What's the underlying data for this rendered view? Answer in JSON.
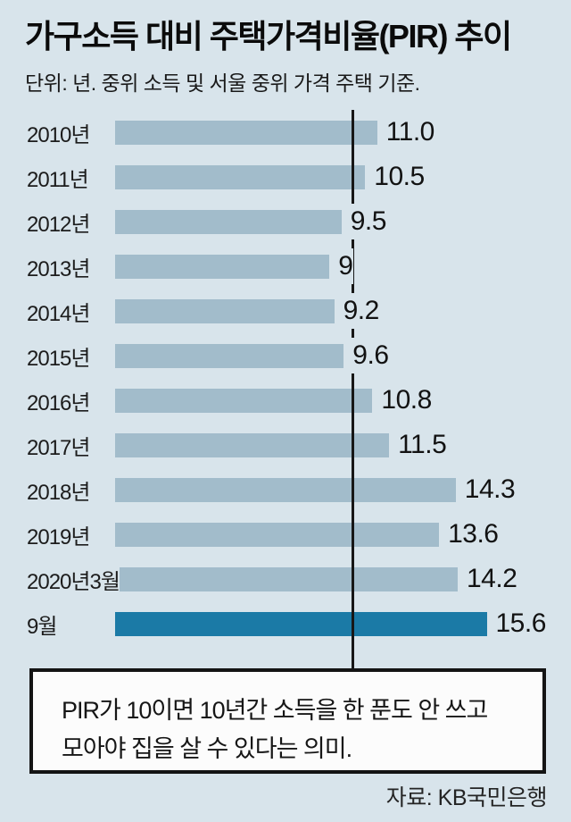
{
  "title": "가구소득 대비 주택가격비율(PIR) 추이",
  "subtitle": "단위: 년. 중위 소득 및 서울 중위 가격 주택 기준.",
  "note": {
    "line1": "PIR가 10이면 10년간 소득을 한 푼도 안 쓰고",
    "line2": "모아야 집을 살 수 있다는 의미."
  },
  "source": "자료: KB국민은행",
  "colors": {
    "background": "#d8e4eb",
    "bar": "#a2bccb",
    "bar_highlight": "#1b7aa6",
    "reference_line": "#171717",
    "note_background": "#fcfcfc"
  },
  "chart_data": {
    "type": "bar",
    "orientation": "horizontal",
    "categories": [
      "2010년",
      "2011년",
      "2012년",
      "2013년",
      "2014년",
      "2015년",
      "2016년",
      "2017년",
      "2018년",
      "2019년",
      "2020년3월",
      "9월"
    ],
    "values": [
      11.0,
      10.5,
      9.5,
      9,
      9.2,
      9.6,
      10.8,
      11.5,
      14.3,
      13.6,
      14.2,
      15.6
    ],
    "value_labels": [
      "11.0",
      "10.5",
      "9.5",
      "9",
      "9.2",
      "9.6",
      "10.8",
      "11.5",
      "14.3",
      "13.6",
      "14.2",
      "15.6"
    ],
    "highlight_index": 11,
    "reference_line_value": 10,
    "xlim": [
      0,
      19
    ],
    "grid": false,
    "legend": false
  }
}
